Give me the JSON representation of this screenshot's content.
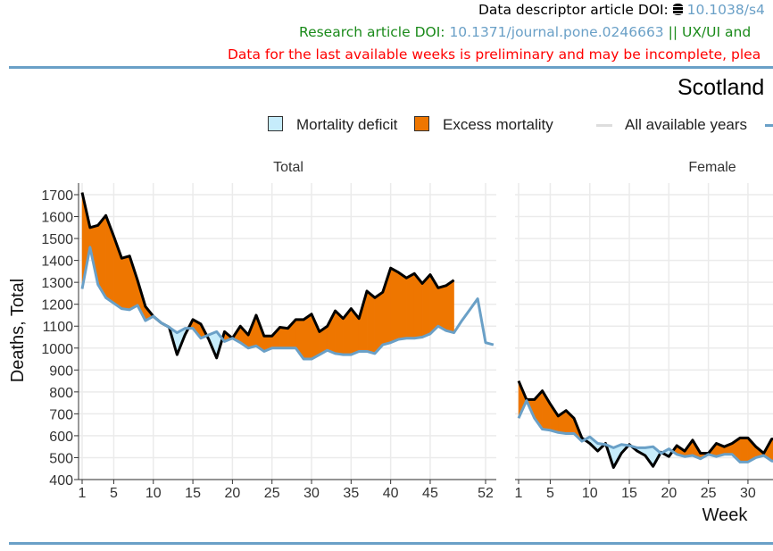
{
  "header": {
    "descriptor_label": "Data descriptor article DOI:",
    "descriptor_icon": "database-icon",
    "descriptor_link": "10.1038/s4",
    "research_label": "Research article DOI:",
    "research_link": "10.1371/journal.pone.0246663",
    "research_suffix": " || UX/UI and ",
    "warning": "Data for the last available weeks is preliminary and may be incomplete, plea"
  },
  "colors": {
    "excess": "#ee7600",
    "deficit": "#c6ecfb",
    "baseline": "#6aa0c7",
    "observed": "#000000",
    "rule": "#6aa0c7"
  },
  "chart_data": {
    "type": "area",
    "title": "Scotland",
    "legend": [
      "Mortality deficit",
      "Excess mortality",
      "All available years"
    ],
    "legend_position": "top",
    "xlabel": "Week",
    "ylabel": "Deaths, Total",
    "ylim": [
      400,
      1700
    ],
    "yticks": [
      400,
      500,
      600,
      700,
      800,
      900,
      1000,
      1100,
      1200,
      1300,
      1400,
      1500,
      1600,
      1700
    ],
    "xticks": [
      1,
      5,
      10,
      15,
      20,
      25,
      30,
      35,
      40,
      45,
      52
    ],
    "female_xticks": [
      1,
      5,
      10,
      15,
      20,
      25,
      30
    ],
    "grid": true,
    "panels": [
      {
        "name": "Total",
        "observed": [
          1710,
          1550,
          1560,
          1605,
          1510,
          1410,
          1420,
          1310,
          1190,
          1145,
          1115,
          1095,
          970,
          1060,
          1130,
          1110,
          1040,
          955,
          1075,
          1045,
          1100,
          1060,
          1150,
          1055,
          1055,
          1095,
          1090,
          1130,
          1130,
          1155,
          1075,
          1100,
          1170,
          1135,
          1180,
          1135,
          1260,
          1230,
          1255,
          1365,
          1345,
          1320,
          1340,
          1295,
          1335,
          1275,
          1285,
          1310
        ],
        "baseline": [
          1270,
          1460,
          1290,
          1230,
          1205,
          1180,
          1175,
          1195,
          1125,
          1145,
          1115,
          1095,
          1070,
          1090,
          1090,
          1045,
          1060,
          1075,
          1030,
          1045,
          1025,
          1000,
          1010,
          985,
          1000,
          1000,
          1000,
          1000,
          950,
          950,
          970,
          990,
          975,
          970,
          970,
          985,
          985,
          975,
          1015,
          1025,
          1040,
          1045,
          1045,
          1050,
          1065,
          1100,
          1080,
          1070,
          1125,
          1175,
          1225,
          1025,
          1015
        ]
      },
      {
        "name": "Female",
        "observed": [
          850,
          765,
          765,
          805,
          745,
          690,
          715,
          680,
          590,
          565,
          530,
          565,
          455,
          520,
          560,
          530,
          510,
          460,
          525,
          505,
          555,
          530,
          580,
          520,
          520,
          565,
          550,
          565,
          590,
          590,
          550,
          520,
          585,
          585
        ],
        "baseline": [
          680,
          760,
          680,
          630,
          625,
          615,
          610,
          610,
          575,
          595,
          565,
          560,
          545,
          560,
          555,
          545,
          545,
          550,
          520,
          540,
          515,
          505,
          510,
          495,
          515,
          505,
          515,
          515,
          480,
          480,
          500,
          510,
          485,
          480
        ]
      }
    ]
  }
}
